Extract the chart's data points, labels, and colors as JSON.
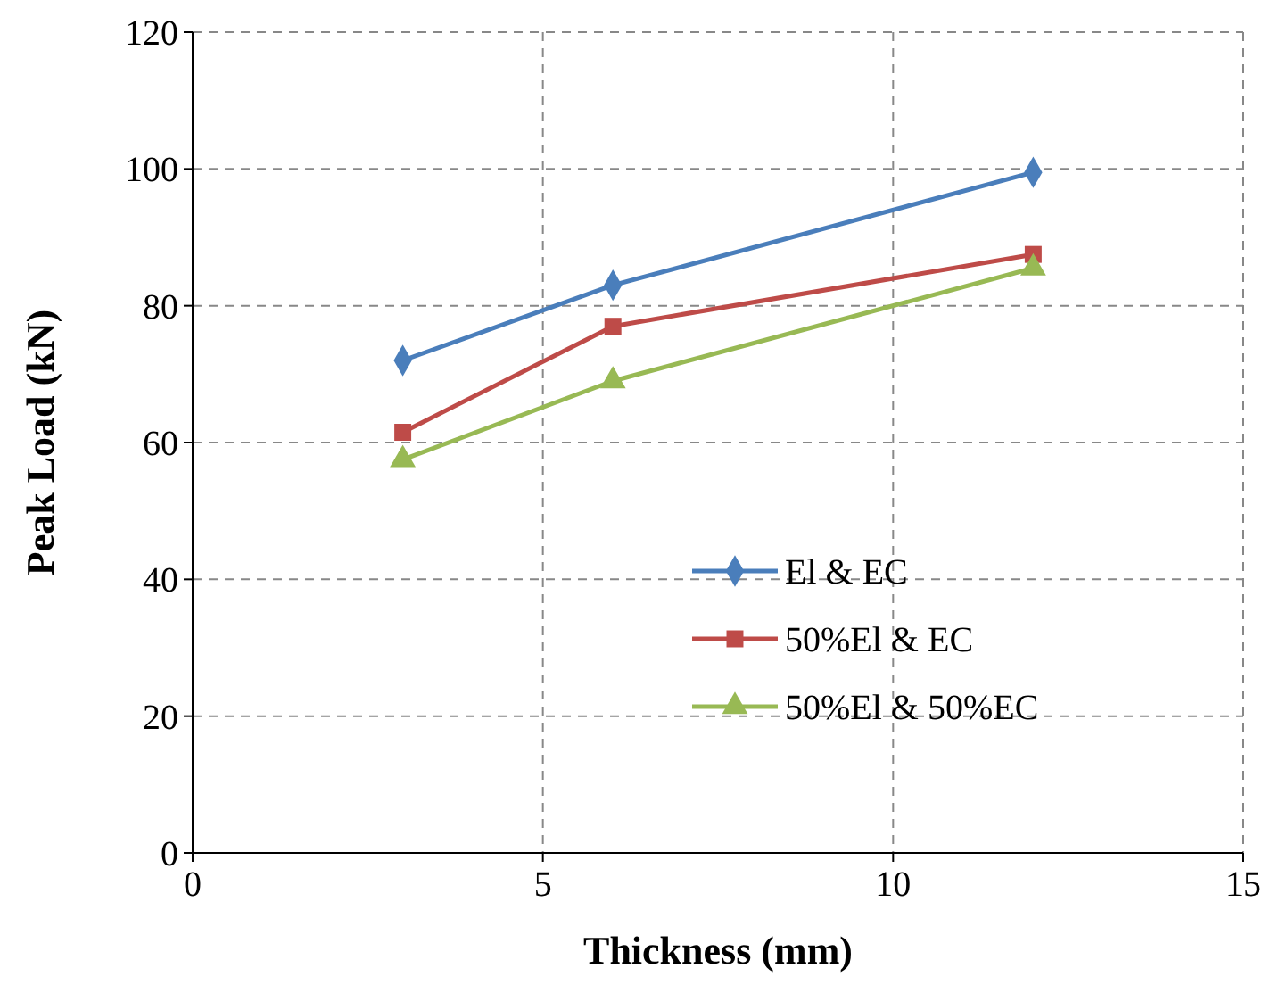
{
  "chart_data": {
    "type": "line",
    "xlabel": "Thickness (mm)",
    "ylabel": "Peak Load (kN)",
    "xlim": [
      0,
      15
    ],
    "xticks": [
      0,
      5,
      10,
      15
    ],
    "ylim": [
      0,
      120
    ],
    "yticks": [
      0,
      20,
      40,
      60,
      80,
      100,
      120
    ],
    "x": [
      3,
      6,
      12
    ],
    "grid": true,
    "legend": "right",
    "line_style": "solid",
    "series": [
      {
        "name": "El & EC",
        "color": "#4a7ebb",
        "marker": "diamond",
        "values": [
          72,
          83,
          99.5
        ]
      },
      {
        "name": "50%El & EC",
        "color": "#be4b48",
        "marker": "square",
        "values": [
          61.5,
          77,
          87.5
        ]
      },
      {
        "name": "50%El & 50%EC",
        "color": "#98b954",
        "marker": "triangle",
        "values": [
          57.5,
          69,
          85.5
        ]
      }
    ]
  }
}
